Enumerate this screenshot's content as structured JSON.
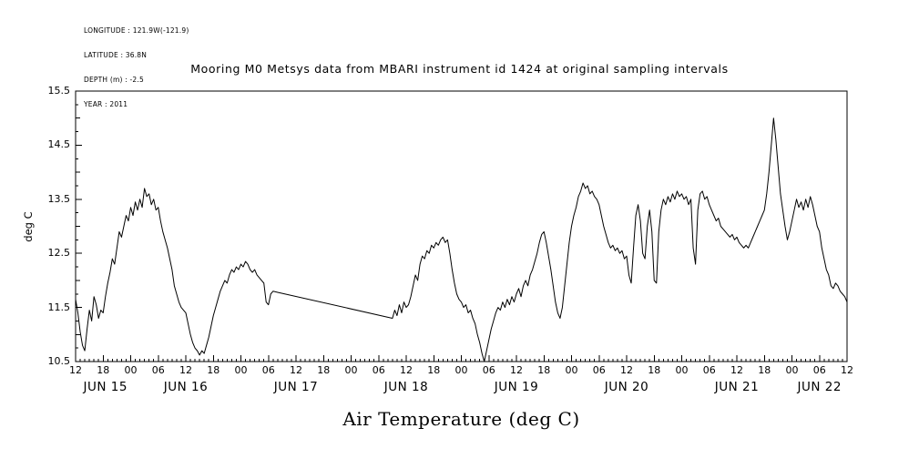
{
  "meta": {
    "lines": [
      "LONGITUDE : 121.9W(-121.9)",
      "LATITUDE : 36.8N",
      "DEPTH (m) : -2.5",
      "YEAR : 2011"
    ]
  },
  "title": "Mooring M0 Metsys data from MBARI instrument id 1424 at original sampling intervals",
  "line_color": "#000000",
  "background_color": "#ffffff",
  "chart_data": {
    "type": "line",
    "title": "Mooring M0 Metsys data from MBARI instrument id 1424 at original sampling intervals",
    "xlabel": "Air Temperature (deg C)",
    "ylabel": "deg C",
    "ylim": [
      10.5,
      15.5
    ],
    "xlim_hours": [
      12,
      180
    ],
    "grid": "off",
    "legend": "none",
    "x_major_tick_every_h": 6,
    "x_tick_labels": [
      "12",
      "18",
      "00",
      "06",
      "12",
      "18",
      "00",
      "06",
      "12",
      "18",
      "00",
      "06",
      "12",
      "18",
      "00",
      "06",
      "12",
      "18",
      "00",
      "06",
      "12",
      "18",
      "00",
      "06",
      "12",
      "18",
      "00",
      "06",
      "12"
    ],
    "y_tick_values": [
      10.5,
      11.5,
      12.5,
      13.5,
      14.5,
      15.5
    ],
    "y_tick_labels": [
      "10.5",
      "11.5",
      "12.5",
      "13.5",
      "14.5",
      "15.5"
    ],
    "day_labels": [
      {
        "h": 18.5,
        "label": "JUN 15"
      },
      {
        "h": 36,
        "label": "JUN 16"
      },
      {
        "h": 60,
        "label": "JUN 17"
      },
      {
        "h": 84,
        "label": "JUN 18"
      },
      {
        "h": 108,
        "label": "JUN 19"
      },
      {
        "h": 132,
        "label": "JUN 20"
      },
      {
        "h": 156,
        "label": "JUN 21"
      },
      {
        "h": 174,
        "label": "JUN 22"
      }
    ],
    "series": [
      {
        "name": "air_temperature_degC",
        "points": [
          [
            12,
            11.65
          ],
          [
            12.5,
            11.4
          ],
          [
            13,
            11.05
          ],
          [
            13.5,
            10.8
          ],
          [
            14,
            10.7
          ],
          [
            14.5,
            11.1
          ],
          [
            15,
            11.45
          ],
          [
            15.5,
            11.25
          ],
          [
            16,
            11.7
          ],
          [
            16.5,
            11.55
          ],
          [
            17,
            11.3
          ],
          [
            17.5,
            11.45
          ],
          [
            18,
            11.4
          ],
          [
            18.5,
            11.7
          ],
          [
            19,
            11.95
          ],
          [
            19.5,
            12.15
          ],
          [
            20,
            12.4
          ],
          [
            20.5,
            12.3
          ],
          [
            21,
            12.6
          ],
          [
            21.5,
            12.9
          ],
          [
            22,
            12.8
          ],
          [
            22.5,
            13.0
          ],
          [
            23,
            13.2
          ],
          [
            23.5,
            13.1
          ],
          [
            24,
            13.35
          ],
          [
            24.5,
            13.2
          ],
          [
            25,
            13.45
          ],
          [
            25.5,
            13.3
          ],
          [
            26,
            13.5
          ],
          [
            26.5,
            13.35
          ],
          [
            27,
            13.7
          ],
          [
            27.5,
            13.55
          ],
          [
            28,
            13.6
          ],
          [
            28.5,
            13.4
          ],
          [
            29,
            13.5
          ],
          [
            29.5,
            13.3
          ],
          [
            30,
            13.35
          ],
          [
            30.5,
            13.1
          ],
          [
            31,
            12.9
          ],
          [
            31.5,
            12.75
          ],
          [
            32,
            12.6
          ],
          [
            32.5,
            12.4
          ],
          [
            33,
            12.2
          ],
          [
            33.5,
            11.9
          ],
          [
            34,
            11.75
          ],
          [
            34.5,
            11.6
          ],
          [
            35,
            11.5
          ],
          [
            35.5,
            11.45
          ],
          [
            36,
            11.4
          ],
          [
            36.5,
            11.2
          ],
          [
            37,
            11.0
          ],
          [
            37.5,
            10.85
          ],
          [
            38,
            10.75
          ],
          [
            38.5,
            10.7
          ],
          [
            39,
            10.62
          ],
          [
            39.5,
            10.7
          ],
          [
            40,
            10.65
          ],
          [
            40.5,
            10.8
          ],
          [
            41,
            10.95
          ],
          [
            41.5,
            11.15
          ],
          [
            42,
            11.35
          ],
          [
            42.5,
            11.5
          ],
          [
            43,
            11.65
          ],
          [
            43.5,
            11.8
          ],
          [
            44,
            11.9
          ],
          [
            44.5,
            12.0
          ],
          [
            45,
            11.95
          ],
          [
            45.5,
            12.1
          ],
          [
            46,
            12.2
          ],
          [
            46.5,
            12.15
          ],
          [
            47,
            12.25
          ],
          [
            47.5,
            12.2
          ],
          [
            48,
            12.3
          ],
          [
            48.5,
            12.25
          ],
          [
            49,
            12.35
          ],
          [
            49.5,
            12.3
          ],
          [
            50,
            12.2
          ],
          [
            50.5,
            12.15
          ],
          [
            51,
            12.2
          ],
          [
            51.5,
            12.1
          ],
          [
            52,
            12.05
          ],
          [
            52.5,
            12.0
          ],
          [
            53,
            11.95
          ],
          [
            53.5,
            11.6
          ],
          [
            54,
            11.55
          ],
          [
            54.5,
            11.75
          ],
          [
            55,
            11.8
          ],
          [
            56,
            11.78
          ],
          [
            81,
            11.3
          ],
          [
            81.5,
            11.45
          ],
          [
            82,
            11.35
          ],
          [
            82.5,
            11.55
          ],
          [
            83,
            11.4
          ],
          [
            83.5,
            11.6
          ],
          [
            84,
            11.5
          ],
          [
            84.5,
            11.55
          ],
          [
            85,
            11.7
          ],
          [
            85.5,
            11.9
          ],
          [
            86,
            12.1
          ],
          [
            86.5,
            12.0
          ],
          [
            87,
            12.3
          ],
          [
            87.5,
            12.45
          ],
          [
            88,
            12.4
          ],
          [
            88.5,
            12.55
          ],
          [
            89,
            12.5
          ],
          [
            89.5,
            12.65
          ],
          [
            90,
            12.6
          ],
          [
            90.5,
            12.7
          ],
          [
            91,
            12.65
          ],
          [
            91.5,
            12.75
          ],
          [
            92,
            12.8
          ],
          [
            92.5,
            12.7
          ],
          [
            93,
            12.75
          ],
          [
            93.5,
            12.5
          ],
          [
            94,
            12.2
          ],
          [
            94.5,
            11.95
          ],
          [
            95,
            11.75
          ],
          [
            95.5,
            11.65
          ],
          [
            96,
            11.6
          ],
          [
            96.5,
            11.5
          ],
          [
            97,
            11.55
          ],
          [
            97.5,
            11.4
          ],
          [
            98,
            11.45
          ],
          [
            98.5,
            11.3
          ],
          [
            99,
            11.2
          ],
          [
            99.5,
            11.0
          ],
          [
            100,
            10.85
          ],
          [
            100.5,
            10.65
          ],
          [
            101,
            10.5
          ],
          [
            101.5,
            10.7
          ],
          [
            102,
            10.9
          ],
          [
            102.5,
            11.1
          ],
          [
            103,
            11.25
          ],
          [
            103.5,
            11.4
          ],
          [
            104,
            11.5
          ],
          [
            104.5,
            11.45
          ],
          [
            105,
            11.6
          ],
          [
            105.5,
            11.5
          ],
          [
            106,
            11.65
          ],
          [
            106.5,
            11.55
          ],
          [
            107,
            11.7
          ],
          [
            107.5,
            11.6
          ],
          [
            108,
            11.75
          ],
          [
            108.5,
            11.85
          ],
          [
            109,
            11.7
          ],
          [
            109.5,
            11.9
          ],
          [
            110,
            12.0
          ],
          [
            110.5,
            11.9
          ],
          [
            111,
            12.1
          ],
          [
            111.5,
            12.2
          ],
          [
            112,
            12.35
          ],
          [
            112.5,
            12.5
          ],
          [
            113,
            12.7
          ],
          [
            113.5,
            12.85
          ],
          [
            114,
            12.9
          ],
          [
            114.5,
            12.7
          ],
          [
            115,
            12.45
          ],
          [
            115.5,
            12.2
          ],
          [
            116,
            11.9
          ],
          [
            116.5,
            11.6
          ],
          [
            117,
            11.4
          ],
          [
            117.5,
            11.3
          ],
          [
            118,
            11.5
          ],
          [
            118.5,
            11.9
          ],
          [
            119,
            12.3
          ],
          [
            119.5,
            12.7
          ],
          [
            120,
            13.0
          ],
          [
            120.5,
            13.2
          ],
          [
            121,
            13.35
          ],
          [
            121.5,
            13.55
          ],
          [
            122,
            13.65
          ],
          [
            122.5,
            13.8
          ],
          [
            123,
            13.7
          ],
          [
            123.5,
            13.75
          ],
          [
            124,
            13.6
          ],
          [
            124.5,
            13.65
          ],
          [
            125,
            13.55
          ],
          [
            125.5,
            13.5
          ],
          [
            126,
            13.4
          ],
          [
            126.5,
            13.2
          ],
          [
            127,
            13.0
          ],
          [
            127.5,
            12.85
          ],
          [
            128,
            12.7
          ],
          [
            128.5,
            12.6
          ],
          [
            129,
            12.65
          ],
          [
            129.5,
            12.55
          ],
          [
            130,
            12.6
          ],
          [
            130.5,
            12.5
          ],
          [
            131,
            12.55
          ],
          [
            131.5,
            12.4
          ],
          [
            132,
            12.45
          ],
          [
            132.5,
            12.1
          ],
          [
            133,
            11.95
          ],
          [
            133.5,
            12.6
          ],
          [
            134,
            13.2
          ],
          [
            134.5,
            13.4
          ],
          [
            135,
            13.1
          ],
          [
            135.5,
            12.5
          ],
          [
            136,
            12.4
          ],
          [
            136.5,
            13.0
          ],
          [
            137,
            13.3
          ],
          [
            137.5,
            12.9
          ],
          [
            138,
            12.0
          ],
          [
            138.5,
            11.95
          ],
          [
            139,
            12.9
          ],
          [
            139.5,
            13.3
          ],
          [
            140,
            13.5
          ],
          [
            140.5,
            13.4
          ],
          [
            141,
            13.55
          ],
          [
            141.5,
            13.45
          ],
          [
            142,
            13.6
          ],
          [
            142.5,
            13.5
          ],
          [
            143,
            13.65
          ],
          [
            143.5,
            13.55
          ],
          [
            144,
            13.6
          ],
          [
            144.5,
            13.5
          ],
          [
            145,
            13.55
          ],
          [
            145.5,
            13.4
          ],
          [
            146,
            13.5
          ],
          [
            146.5,
            12.6
          ],
          [
            147,
            12.3
          ],
          [
            147.5,
            13.3
          ],
          [
            148,
            13.6
          ],
          [
            148.5,
            13.65
          ],
          [
            149,
            13.5
          ],
          [
            149.5,
            13.55
          ],
          [
            150,
            13.4
          ],
          [
            150.5,
            13.3
          ],
          [
            151,
            13.2
          ],
          [
            151.5,
            13.1
          ],
          [
            152,
            13.15
          ],
          [
            152.5,
            13.0
          ],
          [
            153,
            12.95
          ],
          [
            153.5,
            12.9
          ],
          [
            154,
            12.85
          ],
          [
            154.5,
            12.8
          ],
          [
            155,
            12.85
          ],
          [
            155.5,
            12.75
          ],
          [
            156,
            12.8
          ],
          [
            156.5,
            12.7
          ],
          [
            157,
            12.65
          ],
          [
            157.5,
            12.6
          ],
          [
            158,
            12.65
          ],
          [
            158.5,
            12.6
          ],
          [
            159,
            12.7
          ],
          [
            159.5,
            12.8
          ],
          [
            160,
            12.9
          ],
          [
            160.5,
            13.0
          ],
          [
            161,
            13.1
          ],
          [
            161.5,
            13.2
          ],
          [
            162,
            13.3
          ],
          [
            162.5,
            13.6
          ],
          [
            163,
            14.0
          ],
          [
            163.5,
            14.5
          ],
          [
            164,
            15.0
          ],
          [
            164.5,
            14.6
          ],
          [
            165,
            14.1
          ],
          [
            165.5,
            13.6
          ],
          [
            166,
            13.3
          ],
          [
            166.5,
            13.0
          ],
          [
            167,
            12.75
          ],
          [
            167.5,
            12.9
          ],
          [
            168,
            13.1
          ],
          [
            168.5,
            13.3
          ],
          [
            169,
            13.5
          ],
          [
            169.5,
            13.35
          ],
          [
            170,
            13.45
          ],
          [
            170.5,
            13.3
          ],
          [
            171,
            13.5
          ],
          [
            171.5,
            13.35
          ],
          [
            172,
            13.55
          ],
          [
            172.5,
            13.4
          ],
          [
            173,
            13.2
          ],
          [
            173.5,
            13.0
          ],
          [
            174,
            12.9
          ],
          [
            174.5,
            12.6
          ],
          [
            175,
            12.4
          ],
          [
            175.5,
            12.2
          ],
          [
            176,
            12.1
          ],
          [
            176.5,
            11.9
          ],
          [
            177,
            11.85
          ],
          [
            177.5,
            11.95
          ],
          [
            178,
            11.9
          ],
          [
            178.5,
            11.8
          ],
          [
            179,
            11.75
          ],
          [
            179.5,
            11.7
          ],
          [
            180,
            11.6
          ]
        ]
      }
    ]
  }
}
